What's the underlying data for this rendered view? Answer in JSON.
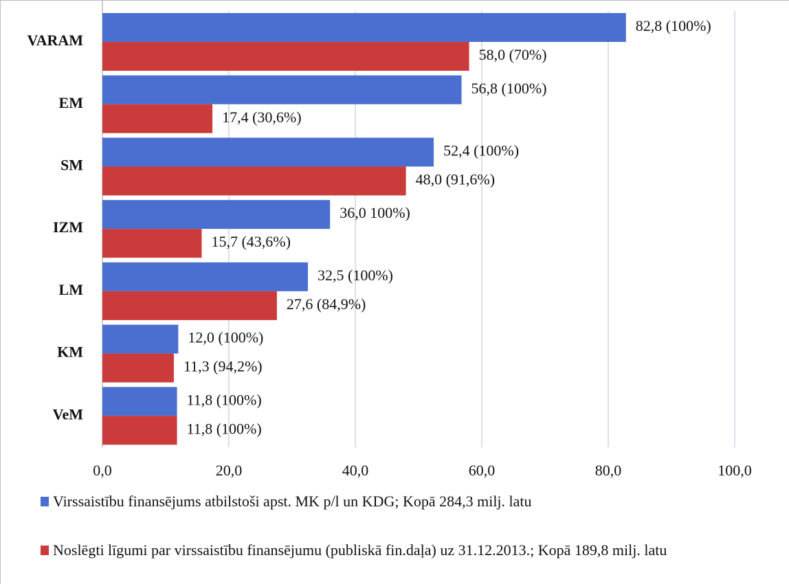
{
  "chart_data": {
    "type": "hbar",
    "categories": [
      "VARAM",
      "EM",
      "SM",
      "IZM",
      "LM",
      "KM",
      "VeM"
    ],
    "series": [
      {
        "name": "Virssaistību finansējums atbilstoši apst. MK p/l un KDG; Kopā 284,3 milj. latu",
        "color": "#4a6fd1",
        "values": [
          82.8,
          56.8,
          52.4,
          36.0,
          32.5,
          12.0,
          11.8
        ],
        "value_labels": [
          "82,8 (100%)",
          "56,8 (100%)",
          "52,4 (100%)",
          "36,0 100%)",
          "32,5 (100%)",
          "12,0 (100%)",
          "11,8 (100%)"
        ]
      },
      {
        "name": "Noslēgti līgumi par virssaistību finansējumu (publiskā fin.daļa) uz 31.12.2013.; Kopā 189,8 milj. latu",
        "color": "#cc3b3b",
        "values": [
          58.0,
          17.4,
          48.0,
          15.7,
          27.6,
          11.3,
          11.8
        ],
        "value_labels": [
          "58,0 (70%)",
          "17,4 (30,6%)",
          "48,0 (91,6%)",
          "15,7 (43,6%)",
          "27,6 (84,9%)",
          "11,3 (94,2%)",
          "11,8 (100%)"
        ]
      }
    ],
    "xlim": [
      0,
      100
    ],
    "xticks": [
      {
        "value": 0,
        "label": "0,0"
      },
      {
        "value": 20,
        "label": "20,0"
      },
      {
        "value": 40,
        "label": "40,0"
      },
      {
        "value": 60,
        "label": "60,0"
      },
      {
        "value": 80,
        "label": "80,0"
      },
      {
        "value": 100,
        "label": "100,0"
      }
    ],
    "grid": true
  }
}
